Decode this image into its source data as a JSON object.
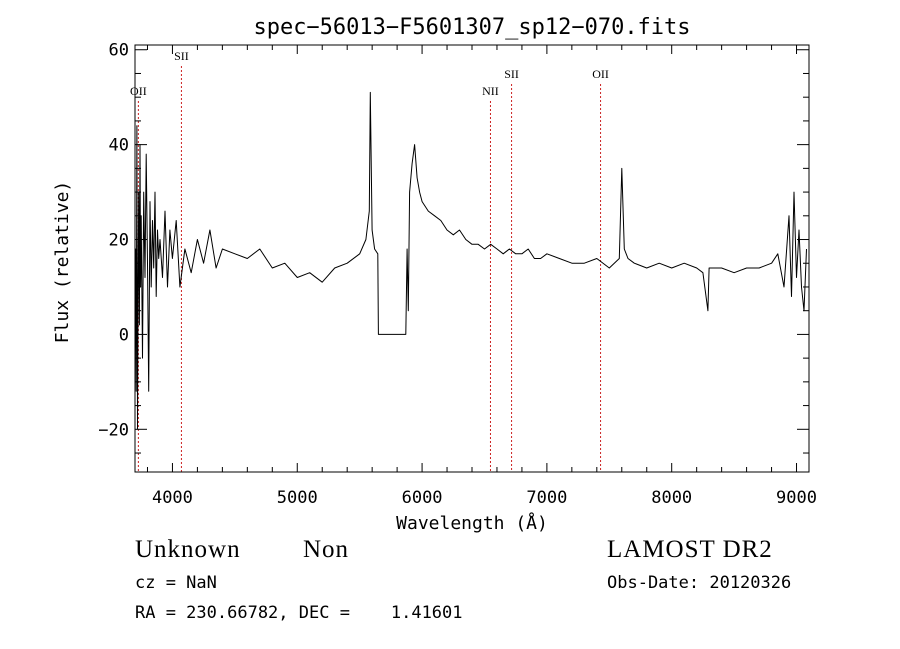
{
  "chart_data": {
    "type": "line",
    "title": "spec−56013−F5601307_sp12−070.fits",
    "xlabel": "Wavelength (Å)",
    "ylabel": "Flux (relative)",
    "xlim": [
      3700,
      9100
    ],
    "ylim": [
      -29,
      61
    ],
    "xticks": [
      4000,
      5000,
      6000,
      7000,
      8000,
      9000
    ],
    "xtick_labels": [
      "4000",
      "5000",
      "6000",
      "7000",
      "8000",
      "9000"
    ],
    "yticks": [
      -20,
      0,
      20,
      40,
      60
    ],
    "ytick_labels": [
      "−20",
      "0",
      "20",
      "40",
      "60"
    ],
    "grid": false,
    "line_color": "#000000",
    "marker_color": "#cc2222",
    "series": [
      {
        "x": [
          3700,
          3705,
          3710,
          3715,
          3720,
          3725,
          3730,
          3735,
          3740,
          3745,
          3750,
          3760,
          3770,
          3780,
          3790,
          3800,
          3810,
          3820,
          3830,
          3840,
          3850,
          3860,
          3870,
          3880,
          3890,
          3900,
          3920,
          3940,
          3960,
          3980,
          4000,
          4030,
          4060,
          4100,
          4150,
          4200,
          4250,
          4300,
          4350,
          4400,
          4500,
          4600,
          4700,
          4800,
          4900,
          5000,
          5100,
          5200,
          5300,
          5400,
          5500,
          5550,
          5577,
          5585,
          5600,
          5620,
          5645,
          5650,
          5700,
          5800,
          5870,
          5880,
          5890,
          5900,
          5920,
          5940,
          5960,
          5980,
          6000,
          6050,
          6100,
          6150,
          6200,
          6250,
          6300,
          6350,
          6400,
          6450,
          6500,
          6550,
          6600,
          6650,
          6700,
          6750,
          6800,
          6850,
          6900,
          6950,
          7000,
          7100,
          7200,
          7300,
          7400,
          7500,
          7580,
          7600,
          7620,
          7650,
          7700,
          7800,
          7900,
          8000,
          8100,
          8200,
          8250,
          8290,
          8300,
          8400,
          8500,
          8600,
          8700,
          8800,
          8850,
          8900,
          8940,
          8960,
          8980,
          9000,
          9020,
          9040,
          9060,
          9080
        ],
        "y": [
          5,
          18,
          -12,
          44,
          -20,
          8,
          30,
          2,
          40,
          10,
          25,
          -5,
          30,
          12,
          38,
          15,
          -12,
          28,
          10,
          24,
          14,
          30,
          8,
          22,
          16,
          20,
          12,
          26,
          10,
          22,
          16,
          24,
          10,
          18,
          13,
          20,
          15,
          22,
          14,
          18,
          17,
          16,
          18,
          14,
          15,
          12,
          13,
          11,
          14,
          15,
          17,
          20,
          26,
          51,
          22,
          18,
          17,
          0,
          0,
          0,
          0,
          18,
          5,
          30,
          36,
          40,
          33,
          30,
          28,
          26,
          25,
          24,
          22,
          21,
          22,
          20,
          19,
          19,
          18,
          19,
          18,
          17,
          18,
          17,
          17,
          18,
          16,
          16,
          17,
          16,
          15,
          15,
          16,
          14,
          16,
          35,
          18,
          16,
          15,
          14,
          15,
          14,
          15,
          14,
          13,
          5,
          14,
          14,
          13,
          14,
          14,
          15,
          17,
          10,
          25,
          8,
          30,
          12,
          22,
          10,
          5,
          18
        ]
      }
    ],
    "line_markers": [
      {
        "label": "OII",
        "x": 3727,
        "style": "dotted",
        "label_level": "low"
      },
      {
        "label": "SII",
        "x": 4072,
        "style": "dotted",
        "label_level": "high"
      },
      {
        "label": "NII",
        "x": 6548,
        "style": "dotted",
        "label_level": "low"
      },
      {
        "label": "SII",
        "x": 6717,
        "style": "dotted",
        "label_level": "mid"
      },
      {
        "label": "OII",
        "x": 7430,
        "style": "dotted",
        "label_level": "mid"
      }
    ]
  },
  "footer": {
    "classification": "Unknown",
    "subclass": "Non",
    "redshift": "cz = NaN",
    "coordinates": "RA = 230.66782, DEC =    1.41601",
    "survey": "LAMOST DR2",
    "obs_date": "Obs-Date: 20120326"
  }
}
